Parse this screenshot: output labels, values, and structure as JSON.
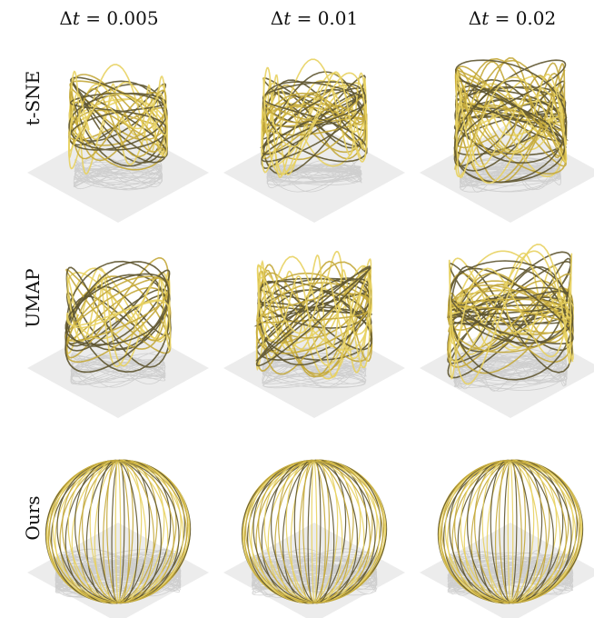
{
  "columns": [
    {
      "prefix": "Δ",
      "var": "t",
      "eq": " = 0.005"
    },
    {
      "prefix": "Δ",
      "var": "t",
      "eq": " = 0.01"
    },
    {
      "prefix": "Δ",
      "var": "t",
      "eq": " = 0.02"
    }
  ],
  "rows": [
    "t-SNE",
    "UMAP",
    "Ours"
  ],
  "colors": {
    "curve_light": "#e8d260",
    "curve_mid": "#c4a93a",
    "curve_dark": "#5e5530",
    "floor": "#ececec",
    "shadow": "#b8b8b8"
  }
}
